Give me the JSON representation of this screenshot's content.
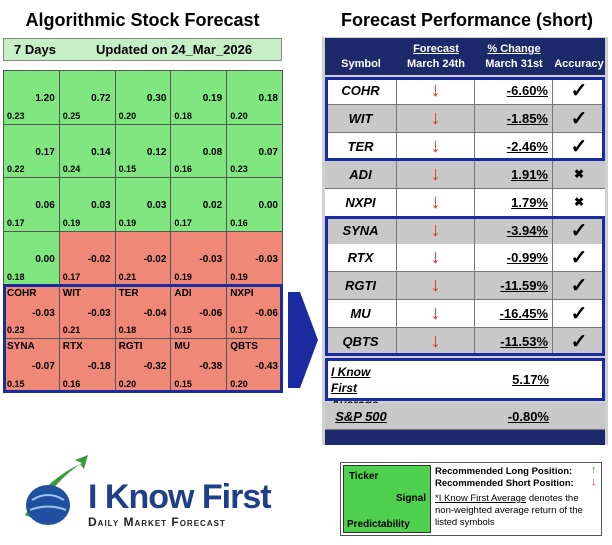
{
  "left": {
    "title": "Algorithmic Stock Forecast",
    "period": "7 Days",
    "updated": "Updated on 24_Mar_2026",
    "rows": [
      [
        {
          "signal": "1.20",
          "predictability": "0.23"
        },
        {
          "signal": "0.72",
          "predictability": "0.25"
        },
        {
          "signal": "0.30",
          "predictability": "0.20"
        },
        {
          "signal": "0.19",
          "predictability": "0.18"
        },
        {
          "signal": "0.18",
          "predictability": "0.20"
        }
      ],
      [
        {
          "signal": "0.17",
          "predictability": "0.22"
        },
        {
          "signal": "0.14",
          "predictability": "0.24"
        },
        {
          "signal": "0.12",
          "predictability": "0.15"
        },
        {
          "signal": "0.08",
          "predictability": "0.16"
        },
        {
          "signal": "0.07",
          "predictability": "0.23"
        }
      ],
      [
        {
          "signal": "0.06",
          "predictability": "0.17"
        },
        {
          "signal": "0.03",
          "predictability": "0.19"
        },
        {
          "signal": "0.03",
          "predictability": "0.19"
        },
        {
          "signal": "0.02",
          "predictability": "0.17"
        },
        {
          "signal": "0.00",
          "predictability": "0.16"
        }
      ],
      [
        {
          "signal": "0.00",
          "predictability": "0.18"
        },
        {
          "signal": "-0.02",
          "predictability": "0.17"
        },
        {
          "signal": "-0.02",
          "predictability": "0.21"
        },
        {
          "signal": "-0.03",
          "predictability": "0.19"
        },
        {
          "signal": "-0.03",
          "predictability": "0.19"
        }
      ],
      [
        {
          "ticker": "COHR",
          "signal": "-0.03",
          "predictability": "0.23"
        },
        {
          "ticker": "WIT",
          "signal": "-0.03",
          "predictability": "0.21"
        },
        {
          "ticker": "TER",
          "signal": "-0.04",
          "predictability": "0.18"
        },
        {
          "ticker": "ADI",
          "signal": "-0.06",
          "predictability": "0.15"
        },
        {
          "ticker": "NXPI",
          "signal": "-0.06",
          "predictability": "0.17"
        }
      ],
      [
        {
          "ticker": "SYNA",
          "signal": "-0.07",
          "predictability": "0.15"
        },
        {
          "ticker": "RTX",
          "signal": "-0.18",
          "predictability": "0.16"
        },
        {
          "ticker": "RGTI",
          "signal": "-0.32",
          "predictability": "0.20"
        },
        {
          "ticker": "MU",
          "signal": "-0.38",
          "predictability": "0.15"
        },
        {
          "ticker": "QBTS",
          "signal": "-0.43",
          "predictability": "0.20"
        }
      ]
    ]
  },
  "right": {
    "title": "Forecast Performance (short)",
    "header": {
      "symbol": "Symbol",
      "forecast": "Forecast",
      "forecast_date": "March 24th",
      "change": "% Change",
      "change_date": "March 31st",
      "accuracy": "Accuracy"
    },
    "rows": [
      {
        "symbol": "COHR",
        "change": "-6.60%",
        "accuracy": "✓"
      },
      {
        "symbol": "WIT",
        "change": "-1.85%",
        "accuracy": "✓"
      },
      {
        "symbol": "TER",
        "change": "-2.46%",
        "accuracy": "✓"
      },
      {
        "symbol": "ADI",
        "change": "1.91%",
        "accuracy": "✖"
      },
      {
        "symbol": "NXPI",
        "change": "1.79%",
        "accuracy": "✖"
      },
      {
        "symbol": "SYNA",
        "change": "-3.94%",
        "accuracy": "✓"
      },
      {
        "symbol": "RTX",
        "change": "-0.99%",
        "accuracy": "✓"
      },
      {
        "symbol": "RGTI",
        "change": "-11.59%",
        "accuracy": "✓"
      },
      {
        "symbol": "MU",
        "change": "-16.45%",
        "accuracy": "✓"
      },
      {
        "symbol": "QBTS",
        "change": "-11.53%",
        "accuracy": "✓"
      }
    ],
    "average": {
      "label": "I Know First Average",
      "change": "5.17%"
    },
    "benchmark": {
      "label": "S&P 500",
      "change": "-0.80%"
    }
  },
  "legend": {
    "ticker": "Ticker",
    "signal": "Signal",
    "predictability": "Predictability",
    "long": "Recommended Long Position:",
    "short": "Recommended Short Position:",
    "note_link": "*I Know First Average",
    "note": " denotes the non-weighted average return of the listed symbols"
  },
  "logo": {
    "brand": "I Know First",
    "tagline": "Daily Market Forecast"
  }
}
